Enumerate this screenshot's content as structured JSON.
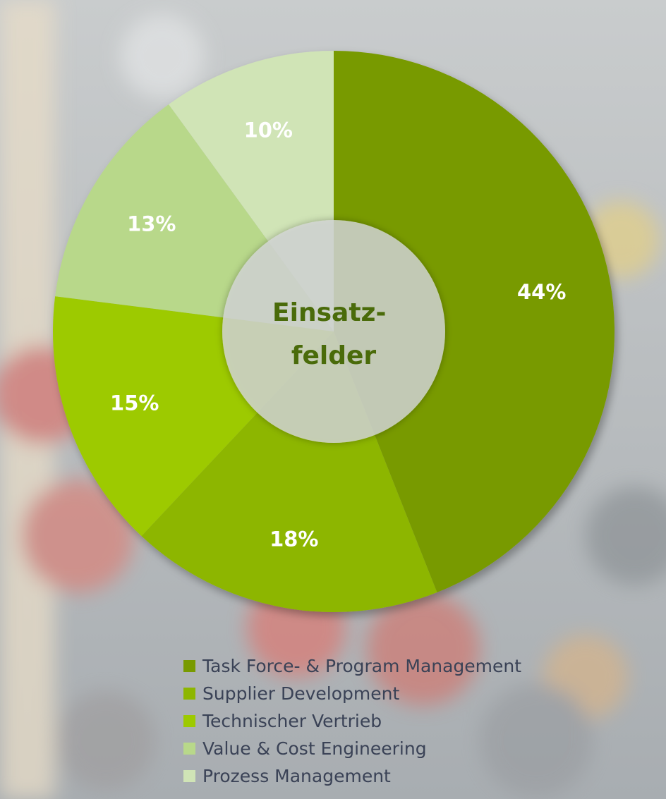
{
  "chart_data": {
    "type": "pie",
    "variant": "donut",
    "center_label": [
      "Einsatz-",
      "felder"
    ],
    "categories": [
      "Task Force- & Program Management",
      "Supplier Development",
      "Technischer Vertrieb",
      "Value & Cost Engineering",
      "Prozess Management"
    ],
    "values": [
      44,
      18,
      15,
      13,
      10
    ],
    "data_labels": [
      "44%",
      "18%",
      "15%",
      "13%",
      "10%"
    ],
    "colors": [
      "#789a00",
      "#8db600",
      "#9dca00",
      "#b8d88a",
      "#d0e4b6"
    ],
    "legend_position": "bottom"
  },
  "center_title_color": "#4a6b0a",
  "background": "blurred-basketball-team-huddle-photo"
}
